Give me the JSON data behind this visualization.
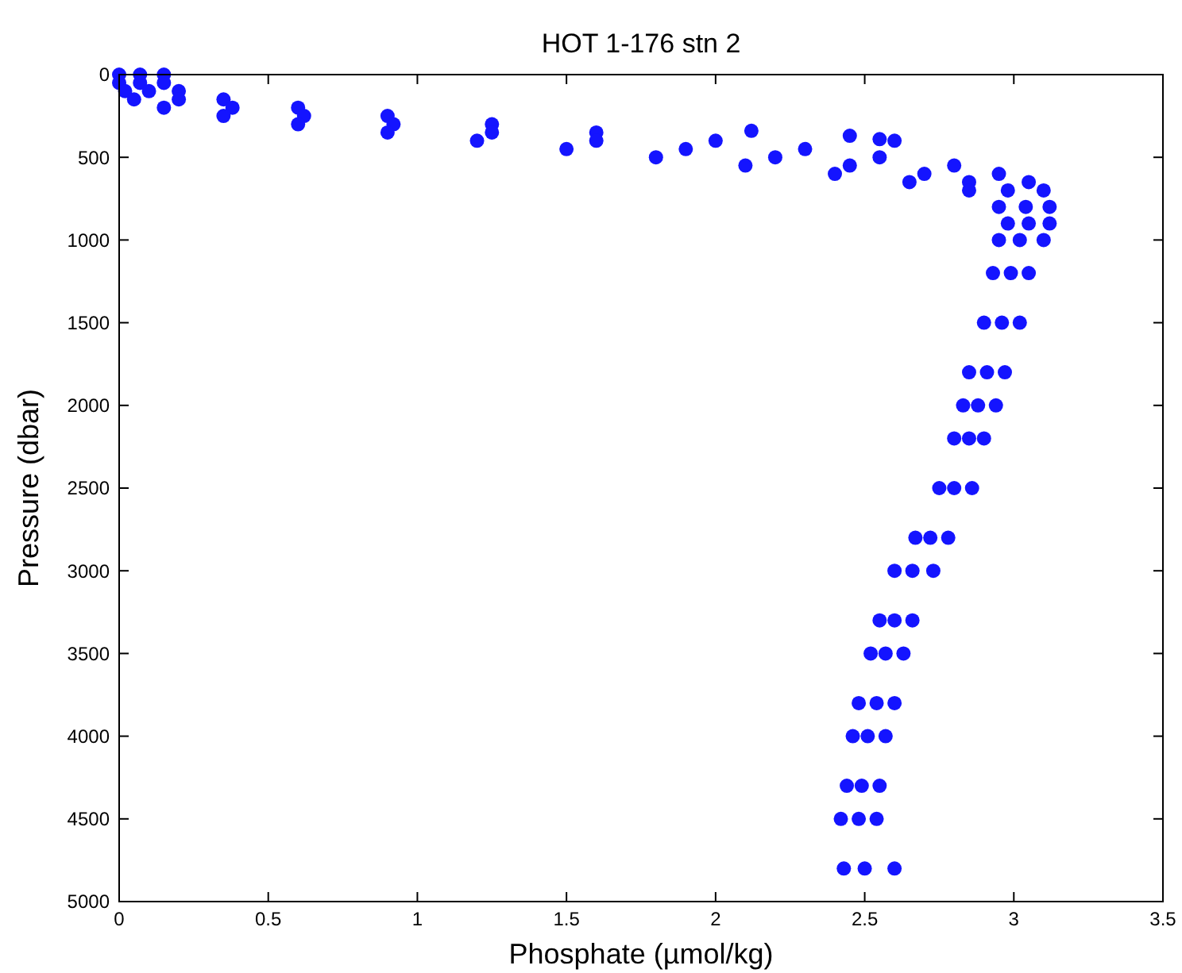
{
  "chart_data": {
    "type": "scatter",
    "title": "HOT 1-176  stn 2",
    "xlabel": "Phosphate (µmol/kg)",
    "ylabel": "Pressure (dbar)",
    "marker": "circle",
    "grid": false,
    "xlim": [
      0,
      3.5
    ],
    "xticks": [
      0,
      0.5,
      1,
      1.5,
      2,
      2.5,
      3,
      3.5
    ],
    "ylim": [
      5000,
      0
    ],
    "yticks": [
      0,
      500,
      1000,
      1500,
      2000,
      2500,
      3000,
      3500,
      4000,
      4500,
      5000
    ],
    "series": [
      {
        "color": "#1414ff",
        "x": [
          0.0,
          0.07,
          0.15,
          0.0,
          0.07,
          0.15,
          0.02,
          0.1,
          0.2,
          0.05,
          0.2,
          0.35,
          0.15,
          0.38,
          0.6,
          0.35,
          0.62,
          0.9,
          0.6,
          0.92,
          1.25,
          0.9,
          1.25,
          1.6,
          1.2,
          1.6,
          2.0,
          1.5,
          1.9,
          2.3,
          1.8,
          2.2,
          2.55,
          2.1,
          2.45,
          2.8,
          2.4,
          2.7,
          2.95,
          2.65,
          2.85,
          3.05,
          2.85,
          2.98,
          3.1,
          2.95,
          3.04,
          3.12,
          2.98,
          3.05,
          3.12,
          2.95,
          3.02,
          3.1,
          2.93,
          2.99,
          3.05,
          2.9,
          2.96,
          3.02,
          2.85,
          2.91,
          2.97,
          2.83,
          2.88,
          2.94,
          2.8,
          2.85,
          2.9,
          2.75,
          2.8,
          2.86,
          2.67,
          2.72,
          2.78,
          2.6,
          2.66,
          2.73,
          2.55,
          2.6,
          2.66,
          2.52,
          2.57,
          2.63,
          2.48,
          2.54,
          2.6,
          2.46,
          2.51,
          2.57,
          2.44,
          2.49,
          2.55,
          2.42,
          2.48,
          2.54,
          2.43,
          2.5,
          2.6,
          2.12,
          2.45,
          2.55,
          2.6
        ],
        "values": [
          0,
          0,
          0,
          50,
          50,
          50,
          100,
          100,
          100,
          150,
          150,
          150,
          200,
          200,
          200,
          250,
          250,
          250,
          300,
          300,
          300,
          350,
          350,
          350,
          400,
          400,
          400,
          450,
          450,
          450,
          500,
          500,
          500,
          550,
          550,
          550,
          600,
          600,
          600,
          650,
          650,
          650,
          700,
          700,
          700,
          800,
          800,
          800,
          900,
          900,
          900,
          1000,
          1000,
          1000,
          1200,
          1200,
          1200,
          1500,
          1500,
          1500,
          1800,
          1800,
          1800,
          2000,
          2000,
          2000,
          2200,
          2200,
          2200,
          2500,
          2500,
          2500,
          2800,
          2800,
          2800,
          3000,
          3000,
          3000,
          3300,
          3300,
          3300,
          3500,
          3500,
          3500,
          3800,
          3800,
          3800,
          4000,
          4000,
          4000,
          4300,
          4300,
          4300,
          4500,
          4500,
          4500,
          4800,
          4800,
          4800,
          340,
          370,
          390,
          400
        ]
      }
    ]
  }
}
